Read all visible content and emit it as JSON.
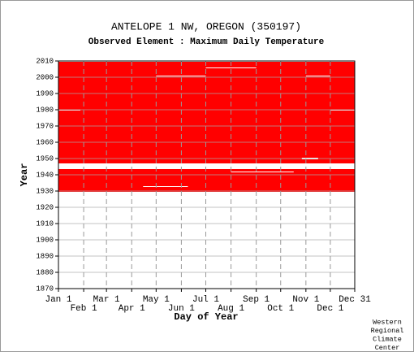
{
  "chart_data": {
    "type": "coverage",
    "title": "ANTELOPE 1 NW, OREGON   (350197)",
    "subtitle": "Observed Element : Maximum Daily Temperature",
    "xlabel": "Day of Year",
    "ylabel": "Year",
    "credit": [
      "Western",
      "Regional",
      "Climate",
      "Center"
    ],
    "color": "#ff0000",
    "xlim": [
      1,
      365
    ],
    "ylim": [
      1870,
      2010
    ],
    "yticks": [
      1870,
      1880,
      1890,
      1900,
      1910,
      1920,
      1930,
      1940,
      1950,
      1960,
      1970,
      1980,
      1990,
      2000,
      2010
    ],
    "xticks": [
      {
        "value": 1,
        "label": "Jan 1"
      },
      {
        "value": 32,
        "label": "Feb 1"
      },
      {
        "value": 60,
        "label": "Mar 1"
      },
      {
        "value": 91,
        "label": "Apr 1"
      },
      {
        "value": 121,
        "label": "May 1"
      },
      {
        "value": 152,
        "label": "Jun 1"
      },
      {
        "value": 182,
        "label": "Jul 1"
      },
      {
        "value": 213,
        "label": "Aug 1"
      },
      {
        "value": 244,
        "label": "Sep 1"
      },
      {
        "value": 274,
        "label": "Oct 1"
      },
      {
        "value": 305,
        "label": "Nov 1"
      },
      {
        "value": 335,
        "label": "Dec 1"
      },
      {
        "value": 365,
        "label": "Dec 31"
      }
    ],
    "records": [
      {
        "start_year": 1929.5,
        "end_year": 1943.5,
        "start_day": 1,
        "end_day": 365
      },
      {
        "start_year": 1947,
        "end_year": 2009.5,
        "start_day": 1,
        "end_day": 365
      }
    ],
    "gaps": [
      {
        "start_year": 1979.5,
        "end_year": 1980,
        "start_day": 1,
        "end_day": 28
      },
      {
        "start_year": 1979.5,
        "end_year": 1980,
        "start_day": 335,
        "end_day": 365
      },
      {
        "start_year": 2000.5,
        "end_year": 2001,
        "start_day": 121,
        "end_day": 182
      },
      {
        "start_year": 2000.5,
        "end_year": 2001,
        "start_day": 305,
        "end_day": 335
      },
      {
        "start_year": 2005.5,
        "end_year": 2006,
        "start_day": 182,
        "end_day": 244
      },
      {
        "start_year": 1941.5,
        "end_year": 1942,
        "start_day": 213,
        "end_day": 290
      },
      {
        "start_year": 1932.5,
        "end_year": 1933,
        "start_day": 105,
        "end_day": 160
      },
      {
        "start_year": 1949.5,
        "end_year": 1950.5,
        "start_day": 300,
        "end_day": 320
      }
    ]
  }
}
